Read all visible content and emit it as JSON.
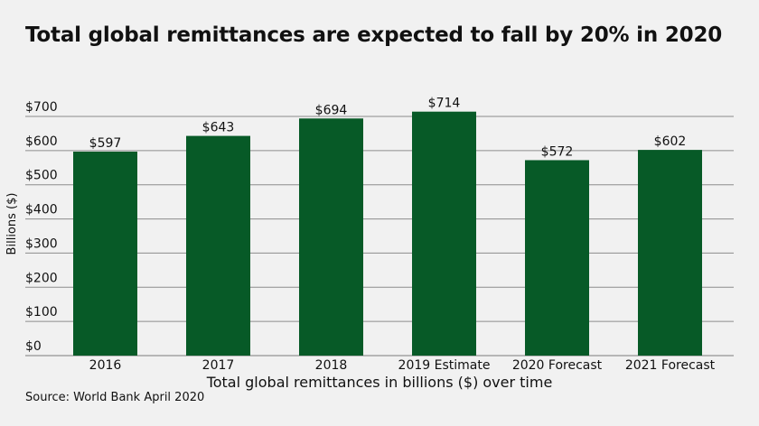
{
  "chart_data": {
    "type": "bar",
    "title": "Total global remittances are expected to fall by 20% in 2020",
    "categories": [
      "2016",
      "2017",
      "2018",
      "2019 Estimate",
      "2020 Forecast",
      "2021 Forecast"
    ],
    "values": [
      597,
      643,
      694,
      714,
      572,
      602
    ],
    "value_labels": [
      "$597",
      "$643",
      "$694",
      "$714",
      "$572",
      "$602"
    ],
    "xlabel": "Total global remittances in billions ($) over time",
    "ylabel": "Billions ($)",
    "ylim": [
      0,
      700
    ],
    "yticks": [
      0,
      100,
      200,
      300,
      400,
      500,
      600,
      700
    ],
    "ytick_labels": [
      "$0",
      "$100",
      "$200",
      "$300",
      "$400",
      "$500",
      "$600",
      "$700"
    ],
    "grid": true,
    "legend": "none",
    "bar_color": "#075a27",
    "source": "Source: World Bank April 2020"
  }
}
